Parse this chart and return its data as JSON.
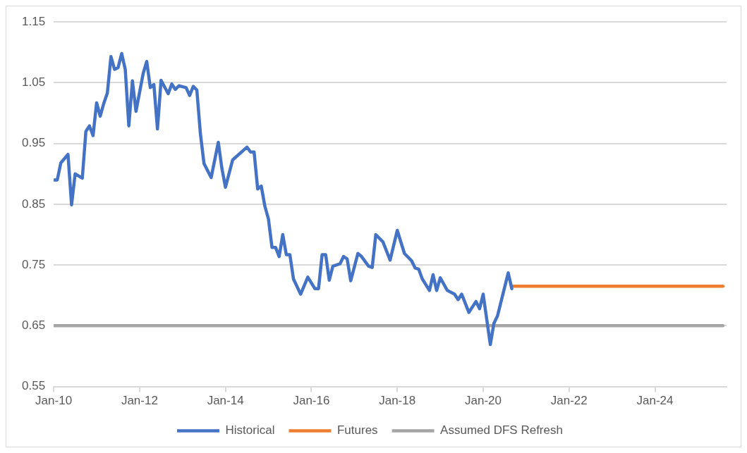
{
  "chart_data": {
    "type": "line",
    "xlim": [
      "2010-01",
      "2025-09"
    ],
    "xticks": [
      {
        "value": "2010-01",
        "label": "Jan-10"
      },
      {
        "value": "2012-01",
        "label": "Jan-12"
      },
      {
        "value": "2014-01",
        "label": "Jan-14"
      },
      {
        "value": "2016-01",
        "label": "Jan-16"
      },
      {
        "value": "2018-01",
        "label": "Jan-18"
      },
      {
        "value": "2020-01",
        "label": "Jan-20"
      },
      {
        "value": "2022-01",
        "label": "Jan-22"
      },
      {
        "value": "2024-01",
        "label": "Jan-24"
      }
    ],
    "ylim": [
      0.55,
      1.15
    ],
    "yticks": [
      0.55,
      0.65,
      0.75,
      0.85,
      0.95,
      1.05,
      1.15
    ],
    "grid": "y",
    "legend": "bottom",
    "marker": "none",
    "line_style": "solid",
    "series": [
      {
        "name": "Historical",
        "color": "#4472c4",
        "x": [
          "2010-01",
          "2010-02",
          "2010-03",
          "2010-05",
          "2010-06",
          "2010-07",
          "2010-09",
          "2010-10",
          "2010-11",
          "2010-12",
          "2011-01",
          "2011-02",
          "2011-03",
          "2011-04",
          "2011-05",
          "2011-06",
          "2011-07",
          "2011-08",
          "2011-09",
          "2011-10",
          "2011-11",
          "2011-12",
          "2012-02",
          "2012-03",
          "2012-04",
          "2012-05",
          "2012-06",
          "2012-07",
          "2012-09",
          "2012-10",
          "2012-11",
          "2012-12",
          "2013-02",
          "2013-03",
          "2013-04",
          "2013-05",
          "2013-06",
          "2013-07",
          "2013-09",
          "2013-11",
          "2013-12",
          "2014-01",
          "2014-03",
          "2014-07",
          "2014-08",
          "2014-09",
          "2014-10",
          "2014-11",
          "2014-12",
          "2015-01",
          "2015-02",
          "2015-03",
          "2015-04",
          "2015-05",
          "2015-06",
          "2015-07",
          "2015-08",
          "2015-10",
          "2015-12",
          "2016-02",
          "2016-03",
          "2016-04",
          "2016-05",
          "2016-06",
          "2016-07",
          "2016-09",
          "2016-10",
          "2016-11",
          "2016-12",
          "2017-02",
          "2017-03",
          "2017-05",
          "2017-06",
          "2017-07",
          "2017-09",
          "2017-11",
          "2018-01",
          "2018-03",
          "2018-05",
          "2018-06",
          "2018-07",
          "2018-08",
          "2018-10",
          "2018-11",
          "2018-12",
          "2019-01",
          "2019-03",
          "2019-05",
          "2019-06",
          "2019-07",
          "2019-09",
          "2019-11",
          "2019-12",
          "2020-01",
          "2020-03",
          "2020-04",
          "2020-05",
          "2020-08",
          "2020-09"
        ],
        "values": [
          0.89,
          0.89,
          0.918,
          0.932,
          0.849,
          0.9,
          0.893,
          0.97,
          0.979,
          0.963,
          1.017,
          0.995,
          1.016,
          1.033,
          1.093,
          1.072,
          1.075,
          1.098,
          1.072,
          0.979,
          1.053,
          1.003,
          1.065,
          1.085,
          1.042,
          1.047,
          0.974,
          1.054,
          1.032,
          1.048,
          1.039,
          1.045,
          1.042,
          1.029,
          1.044,
          1.038,
          0.966,
          0.917,
          0.894,
          0.952,
          0.909,
          0.878,
          0.923,
          0.944,
          0.936,
          0.936,
          0.875,
          0.88,
          0.847,
          0.826,
          0.779,
          0.779,
          0.764,
          0.8,
          0.767,
          0.767,
          0.727,
          0.702,
          0.73,
          0.711,
          0.711,
          0.767,
          0.767,
          0.725,
          0.748,
          0.752,
          0.764,
          0.76,
          0.724,
          0.769,
          0.764,
          0.748,
          0.746,
          0.8,
          0.788,
          0.758,
          0.807,
          0.769,
          0.757,
          0.745,
          0.743,
          0.727,
          0.708,
          0.734,
          0.708,
          0.729,
          0.708,
          0.702,
          0.693,
          0.702,
          0.672,
          0.69,
          0.678,
          0.702,
          0.619,
          0.654,
          0.666,
          0.737,
          0.711
        ]
      },
      {
        "name": "Futures",
        "color": "#ed7d31",
        "x": [
          "2020-09",
          "2025-08"
        ],
        "values": [
          0.715,
          0.715
        ]
      },
      {
        "name": "Assumed DFS Refresh",
        "color": "#a5a5a5",
        "x": [
          "2010-01",
          "2025-08"
        ],
        "values": [
          0.65,
          0.65
        ]
      }
    ]
  }
}
